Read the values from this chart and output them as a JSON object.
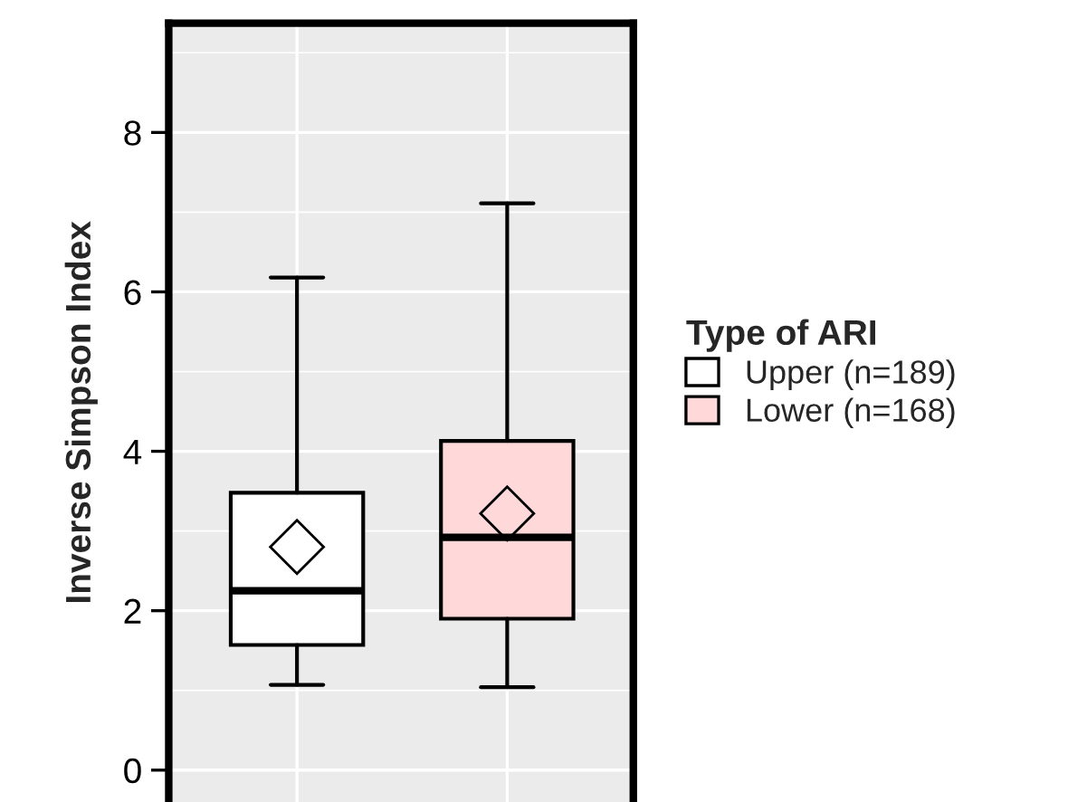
{
  "chart_data": {
    "type": "box",
    "ylabel": "Inverse Simpson Index",
    "legend_title": "Type of ARI",
    "legend": "right",
    "grid": true,
    "categories": [
      null,
      null
    ],
    "ylim": [
      -0.4,
      9.37
    ],
    "yticks": [
      0,
      2,
      4,
      6,
      8
    ],
    "series": [
      {
        "name": "Upper (n=189)",
        "color": "#ffffff",
        "boxes": [
          {
            "low": 1.07,
            "q1": 1.57,
            "median": 2.25,
            "q3": 3.48,
            "high": 6.18,
            "mean": 2.8
          },
          null
        ]
      },
      {
        "name": "Lower (n=168)",
        "color": "#ffd9d9",
        "boxes": [
          null,
          {
            "low": 1.04,
            "q1": 1.9,
            "median": 2.92,
            "q3": 4.13,
            "high": 7.11,
            "mean": 3.22
          }
        ]
      }
    ]
  }
}
